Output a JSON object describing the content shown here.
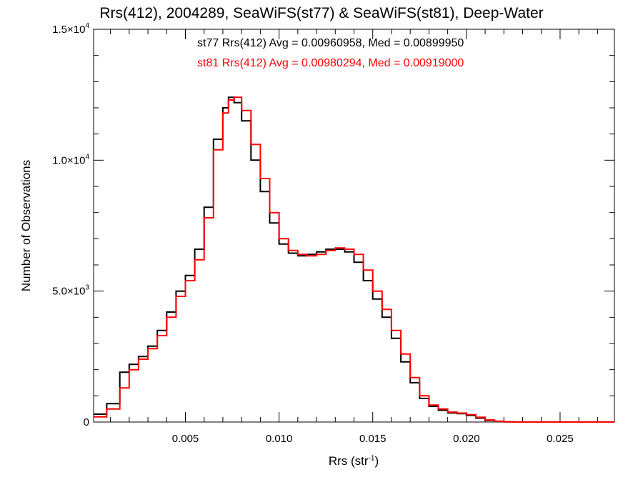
{
  "chart_data": {
    "type": "histogram-step",
    "title": "Rrs(412), 2004289, SeaWiFS(st77) & SeaWiFS(st81), Deep-Water",
    "xlabel": {
      "base": "Rrs (str",
      "sup": "-1",
      "tail": ")"
    },
    "ylabel": "Number of Observations",
    "xlim": [
      0.0001,
      0.0279
    ],
    "ylim": [
      0,
      15000
    ],
    "grid": false,
    "x_ticks": [
      {
        "value": 0.005,
        "label": "0.005"
      },
      {
        "value": 0.01,
        "label": "0.010"
      },
      {
        "value": 0.015,
        "label": "0.015"
      },
      {
        "value": 0.02,
        "label": "0.020"
      },
      {
        "value": 0.025,
        "label": "0.025"
      }
    ],
    "y_ticks": [
      {
        "value": 0,
        "base": "0",
        "exp": ""
      },
      {
        "value": 5000,
        "base": "5.0×10",
        "exp": "3"
      },
      {
        "value": 10000,
        "base": "1.0×10",
        "exp": "4"
      },
      {
        "value": 15000,
        "base": "1.5×10",
        "exp": "4"
      }
    ],
    "annotations": [
      {
        "text": "st77 Rrs(412) Avg = 0.00960958, Med = 0.00899950",
        "color": "#000000"
      },
      {
        "text": "st81 Rrs(412) Avg = 0.00980294, Med = 0.00919000",
        "color": "#ff0000"
      }
    ],
    "x": [
      0.0001,
      0.0008,
      0.0015,
      0.002,
      0.0025,
      0.003,
      0.0035,
      0.004,
      0.0045,
      0.005,
      0.0055,
      0.006,
      0.0065,
      0.007,
      0.0073,
      0.0076,
      0.008,
      0.0085,
      0.009,
      0.0095,
      0.01,
      0.0105,
      0.011,
      0.0115,
      0.012,
      0.0125,
      0.013,
      0.0135,
      0.014,
      0.0145,
      0.015,
      0.0155,
      0.016,
      0.0165,
      0.017,
      0.0175,
      0.018,
      0.0185,
      0.019,
      0.0195,
      0.02,
      0.0205,
      0.021,
      0.0215,
      0.022,
      0.0225,
      0.023,
      0.0235,
      0.024,
      0.0245,
      0.025,
      0.026,
      0.027,
      0.0279
    ],
    "series": [
      {
        "name": "st77",
        "color": "#000000",
        "values": [
          300,
          700,
          1900,
          2200,
          2500,
          2900,
          3500,
          4200,
          5000,
          5600,
          6600,
          8200,
          10800,
          12000,
          12400,
          12200,
          11500,
          10000,
          8800,
          7600,
          6800,
          6450,
          6350,
          6400,
          6500,
          6600,
          6600,
          6500,
          6100,
          5400,
          4700,
          4000,
          3200,
          2300,
          1500,
          900,
          600,
          450,
          350,
          320,
          250,
          150,
          60,
          20,
          5,
          0,
          0,
          0,
          0,
          0,
          0,
          0,
          0,
          0
        ]
      },
      {
        "name": "st81",
        "color": "#ff0000",
        "values": [
          200,
          500,
          1300,
          2000,
          2400,
          2800,
          3300,
          4000,
          4800,
          5400,
          6200,
          7800,
          10400,
          11800,
          12300,
          12400,
          11900,
          10600,
          9300,
          8000,
          7000,
          6550,
          6400,
          6350,
          6400,
          6550,
          6650,
          6600,
          6400,
          5800,
          5000,
          4300,
          3500,
          2600,
          1700,
          1000,
          650,
          500,
          380,
          340,
          280,
          180,
          80,
          30,
          5,
          0,
          0,
          0,
          0,
          0,
          0,
          0,
          0,
          0
        ]
      }
    ]
  }
}
